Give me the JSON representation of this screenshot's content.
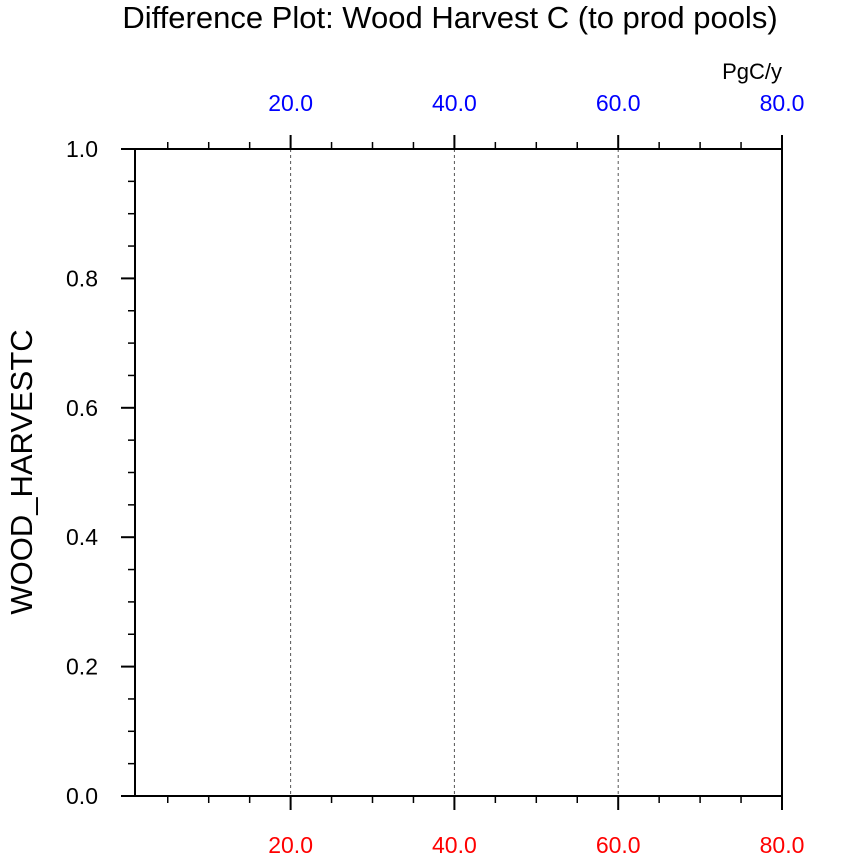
{
  "chart_data": {
    "type": "line",
    "title": "Difference Plot: Wood Harvest C (to prod pools)",
    "units_label": "PgC/y",
    "ylabel": "WOOD_HARVESTC",
    "xlabel": "",
    "xlim": [
      1,
      80
    ],
    "ylim": [
      0.0,
      1.0
    ],
    "x_ticks": [
      20,
      40,
      60,
      80
    ],
    "x_tick_labels_bottom": [
      "20.0",
      "40.0",
      "60.0",
      "80.0"
    ],
    "x_tick_labels_top": [
      "20.0",
      "40.0",
      "60.0",
      "80.0"
    ],
    "x_minor_step": 5,
    "y_ticks": [
      0.0,
      0.2,
      0.4,
      0.6,
      0.8,
      1.0
    ],
    "y_tick_labels": [
      "0.0",
      "0.2",
      "0.4",
      "0.6",
      "0.8",
      "1.0"
    ],
    "y_minor_step": 0.05,
    "grid": "vertical-dashed",
    "bottom_axis_color": "#ff0000",
    "top_axis_color": "#0000ff",
    "series": []
  }
}
